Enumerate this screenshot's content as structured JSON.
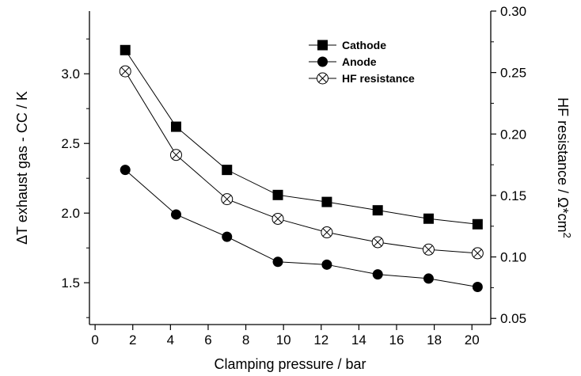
{
  "chart_data": {
    "type": "line",
    "xlabel": "Clamping pressure / bar",
    "ylabel_left": "ΔT exhaust gas - CC / K",
    "ylabel_right": "HF resistance / Ω*cm",
    "ylabel_right_superscript": "2",
    "xlim": [
      -0.3,
      21.0
    ],
    "ylim_left": [
      1.2,
      3.45
    ],
    "ylim_right": [
      0.045,
      0.3
    ],
    "x_ticks": [
      0,
      2,
      4,
      6,
      8,
      10,
      12,
      14,
      16,
      18,
      20
    ],
    "x_tick_labels": [
      "0",
      "2",
      "4",
      "6",
      "8",
      "10",
      "12",
      "14",
      "16",
      "18",
      "20"
    ],
    "y_left_ticks": [
      1.5,
      2.0,
      2.5,
      3.0
    ],
    "y_left_tick_labels": [
      "1.5",
      "2.0",
      "2.5",
      "3.0"
    ],
    "y_right_ticks": [
      0.05,
      0.1,
      0.15,
      0.2,
      0.25,
      0.3
    ],
    "y_right_tick_labels": [
      "0.05",
      "0.10",
      "0.15",
      "0.20",
      "0.25",
      "0.30"
    ],
    "grid": false,
    "legend_position": "top-right",
    "series": [
      {
        "name": "Cathode",
        "axis": "left",
        "marker": "square",
        "x": [
          1.6,
          4.3,
          7.0,
          9.7,
          12.3,
          15.0,
          17.7,
          20.3
        ],
        "values": [
          3.17,
          2.62,
          2.31,
          2.13,
          2.08,
          2.02,
          1.96,
          1.92
        ]
      },
      {
        "name": "Anode",
        "axis": "left",
        "marker": "circle",
        "x": [
          1.6,
          4.3,
          7.0,
          9.7,
          12.3,
          15.0,
          17.7,
          20.3
        ],
        "values": [
          2.31,
          1.99,
          1.83,
          1.65,
          1.63,
          1.56,
          1.53,
          1.47
        ]
      },
      {
        "name": "HF resistance",
        "axis": "right",
        "marker": "circle-x",
        "x": [
          1.6,
          4.3,
          7.0,
          9.7,
          12.3,
          15.0,
          17.7,
          20.3
        ],
        "values": [
          0.251,
          0.183,
          0.147,
          0.131,
          0.12,
          0.112,
          0.106,
          0.103
        ]
      }
    ]
  }
}
